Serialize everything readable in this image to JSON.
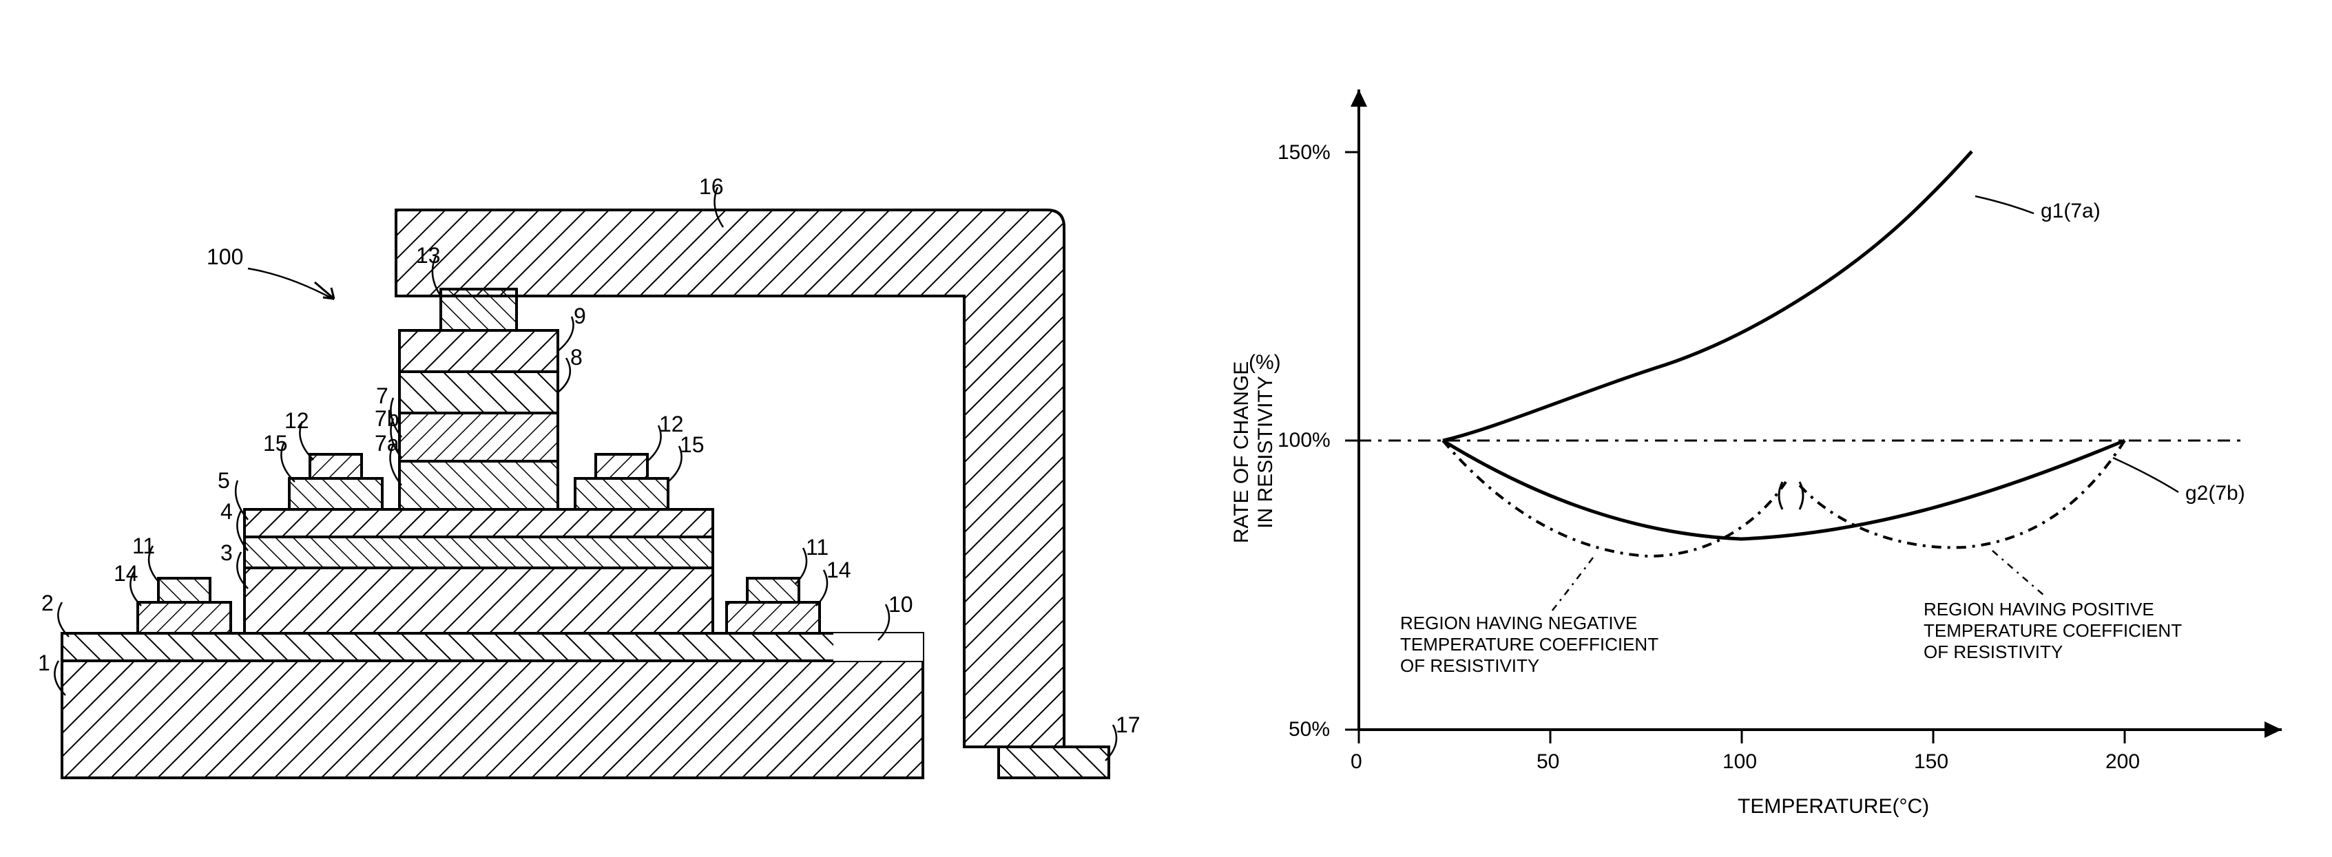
{
  "diagram": {
    "assembly_label": "100",
    "component_labels": {
      "1": "1",
      "2": "2",
      "3": "3",
      "4": "4",
      "5": "5",
      "7": "7",
      "7a": "7a",
      "7b": "7b",
      "8": "8",
      "9": "9",
      "10": "10",
      "11L": "11",
      "11R": "11",
      "12L": "12",
      "12R": "12",
      "13": "13",
      "14L": "14",
      "14R": "14",
      "15L": "15",
      "15R": "15",
      "16": "16",
      "17": "17"
    },
    "hatch_color": "#000000",
    "background": "#ffffff",
    "stroke_width": 3
  },
  "chart": {
    "type": "line",
    "title": "",
    "xlabel": "TEMPERATURE(°C)",
    "ylabel_line1": "RATE OF CHANGE",
    "ylabel_line2": "IN RESISTIVITY",
    "ylabel_unit": "(%)",
    "xlim": [
      0,
      230
    ],
    "ylim": [
      50,
      155
    ],
    "xticks": [
      0,
      50,
      100,
      150,
      200
    ],
    "yticks": [
      50,
      100,
      150
    ],
    "ytick_labels": [
      "50%",
      "100%",
      "150%"
    ],
    "reference_line_y": 100,
    "curve_g1": {
      "label": "g1(7a)",
      "points": [
        [
          22,
          100
        ],
        [
          45,
          103
        ],
        [
          70,
          108
        ],
        [
          95,
          116
        ],
        [
          120,
          126
        ],
        [
          145,
          140
        ],
        [
          160,
          150
        ]
      ],
      "dash": "none",
      "color": "#000000",
      "width": 4
    },
    "curve_g2_solid": {
      "label": "g2(7b)",
      "points": [
        [
          22,
          100
        ],
        [
          45,
          93
        ],
        [
          70,
          87
        ],
        [
          95,
          84
        ],
        [
          110,
          83
        ],
        [
          130,
          84
        ],
        [
          150,
          87
        ],
        [
          170,
          92
        ],
        [
          185,
          96
        ],
        [
          200,
          100
        ]
      ],
      "dash": "none",
      "color": "#000000",
      "width": 4
    },
    "curve_dashdot1": {
      "points": [
        [
          22,
          100
        ],
        [
          40,
          91
        ],
        [
          55,
          85
        ],
        [
          70,
          81
        ],
        [
          85,
          80
        ],
        [
          100,
          82
        ],
        [
          110,
          86
        ],
        [
          115,
          90
        ]
      ],
      "dash": "8 6 3 6",
      "color": "#000000",
      "width": 3.5
    },
    "curve_dashdot2": {
      "points": [
        [
          115,
          90
        ],
        [
          125,
          85
        ],
        [
          140,
          83
        ],
        [
          155,
          84
        ],
        [
          170,
          88
        ],
        [
          185,
          93
        ],
        [
          200,
          100
        ]
      ],
      "dash": "8 6 3 6",
      "color": "#000000",
      "width": 3.5
    },
    "annotation_left": "REGION HAVING NEGATIVE\nTEMPERATURE COEFFICIENT\nOF RESISTIVITY",
    "annotation_right": "REGION HAVING POSITIVE\nTEMPERATURE COEFFICIENT\nOF RESISTIVITY",
    "axis_color": "#000000",
    "label_fontsize": 30,
    "tick_fontsize": 30,
    "background_color": "#ffffff"
  }
}
